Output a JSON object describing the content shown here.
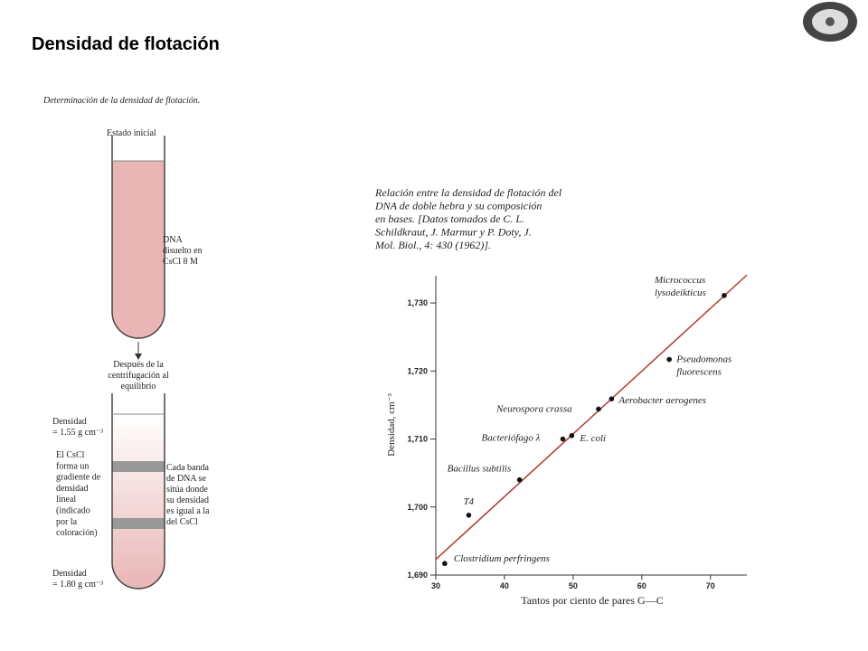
{
  "slide_title": "Densidad de flotación",
  "diagram": {
    "title": "Determinación de la densidad de flotación.",
    "initial_state": "Estado inicial",
    "dna_note": [
      "DNA",
      "disuelto en",
      "CsCl 8 M"
    ],
    "after_note": [
      "Después de la",
      "centrifugación al",
      "equilibrio"
    ],
    "top_density": [
      "Densidad",
      "= 1.55 g cm⁻³"
    ],
    "gradient_note": [
      "El CsCl",
      "forma un",
      "gradiente de",
      "densidad",
      "lineal",
      "(indicado",
      "por la",
      "coloración)"
    ],
    "band_note": [
      "Cada banda",
      "de DNA se",
      "sitúa donde",
      "su densidad",
      "es igual a la",
      "del CsCl"
    ],
    "bottom_density": [
      "Densidad",
      "= 1.80 g cm⁻³"
    ]
  },
  "chart_data": {
    "type": "scatter",
    "caption": [
      "Relación entre la densidad de flotación del",
      "DNA de doble hebra y su composición",
      "en bases. [Datos tomados de C. L.",
      "Schildkraut, J. Marmur y P. Doty, J.",
      "Mol. Biol., 4: 430 (1962)]."
    ],
    "x_label": "Tantos por ciento de pares G—C",
    "y_label": "Densidad, cm⁻³",
    "labels": [
      [
        "Clostridium perfringens"
      ],
      [
        "T4"
      ],
      [
        "Bacillus subtilis"
      ],
      [
        "Bacteriófago λ"
      ],
      [
        "E. coli"
      ],
      [
        "Neurospora crassa"
      ],
      [
        "Aerobacter aerogenes"
      ],
      [
        "Pseudomonas",
        "fluorescens"
      ],
      [
        "Micrococcus",
        "lysodeikticus"
      ]
    ],
    "x": [
      31.3,
      34.8,
      42.2,
      48.5,
      49.8,
      53.7,
      55.6,
      64.0,
      72.0
    ],
    "values": [
      1.6917,
      1.6988,
      1.704,
      1.71,
      1.7105,
      1.7144,
      1.7159,
      1.7217,
      1.7311
    ],
    "color": "#111111",
    "fit_line": {
      "x": [
        30,
        75.3
      ],
      "y": [
        1.6923,
        1.7341
      ],
      "color": "#b03a2e"
    },
    "xlim": [
      30,
      75.3
    ],
    "ylim": [
      1.69,
      1.734
    ],
    "xticks": [
      30,
      40,
      50,
      60,
      70
    ],
    "yticks": [
      {
        "value": 1.69,
        "label": "1,690"
      },
      {
        "value": 1.7,
        "label": "1,700"
      },
      {
        "value": 1.71,
        "label": "1,710"
      },
      {
        "value": 1.72,
        "label": "1,720"
      },
      {
        "value": 1.73,
        "label": "1,730"
      }
    ]
  }
}
